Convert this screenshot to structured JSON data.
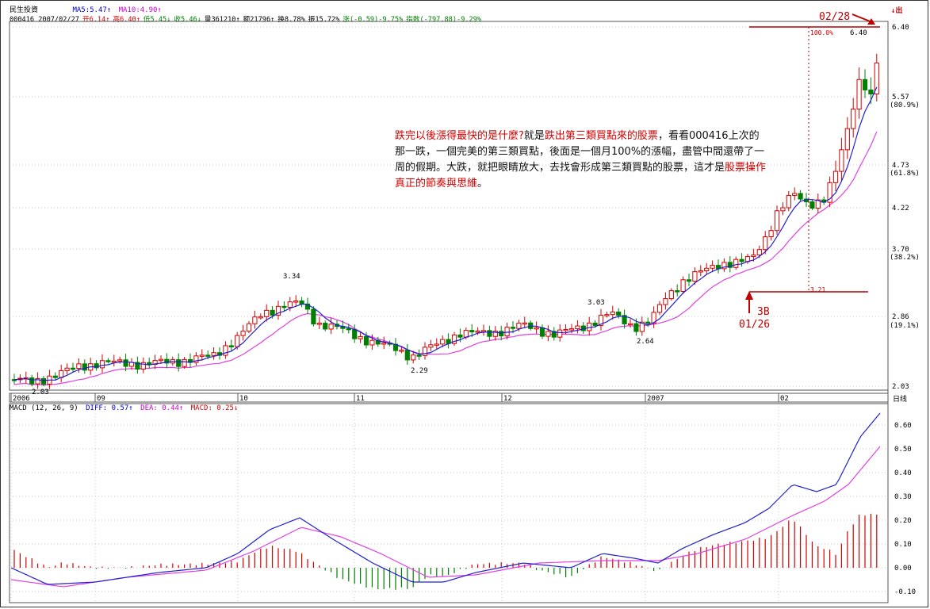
{
  "header": {
    "title": "民生投資",
    "ma5": "MA5:5.47↑",
    "ma10": "MA10:4.90↑",
    "info_line": "000416 2007/02/27",
    "open": "开6.14↑",
    "high": "高6.40↑",
    "low": "低5.45↓",
    "close": "收5.46↓",
    "volume": "量361210↑",
    "amount": "额21796↑",
    "turnover": "换8.78%",
    "amplitude": "振15.72%",
    "change": "涨(-0.59)-9.75%",
    "index": "指数(-797.88)-9.29%"
  },
  "toolbar": {
    "icons": [
      "sort-down-icon",
      "up-icon"
    ],
    "label": "↓出"
  },
  "price_axis": {
    "ticks": [
      "6.40",
      "5.57",
      "4.73",
      "4.22",
      "3.70",
      "2.86",
      "2.03"
    ],
    "pct": [
      "(80.9%)",
      "(61.8%)",
      "(38.2%)",
      "(19.1%)"
    ]
  },
  "date_axis": [
    "2006",
    "09",
    "10",
    "11",
    "12",
    "2007",
    "02"
  ],
  "price_labels": [
    "3.34",
    "2.03",
    "2.29",
    "3.03",
    "2.64",
    "6.40",
    "100.0%",
    "3.21"
  ],
  "annotations": {
    "top_date": "02/28",
    "bottom_label": "3B",
    "bottom_date": "01/26"
  },
  "note": {
    "p1": "跌完以後漲得最快的是什麼?",
    "p2": "就是",
    "p3": "跌出第三類買點來的股票",
    "p4": "，看看000416上次的那一跌，一個完美的第三類買點，後面是一個月100%的漲幅，盡管中間還帶了一周的假期。大跌，就把眼睛放大，去找會形成第三類買點的股票，這才是",
    "p5": "股票操作真正的節奏與思維",
    "p6": "。"
  },
  "macd": {
    "label": "MACD (12, 26, 9)",
    "diff": "DIFF: 0.57↑",
    "dea": "DEA: 0.44↑",
    "macd": "MACD: 0.25↓",
    "ticks": [
      "0.60",
      "0.50",
      "0.40",
      "0.30",
      "0.20",
      "0.10",
      "0.00",
      "-0.10"
    ],
    "period": "日线"
  },
  "colors": {
    "up": "#d40000",
    "down": "#008000",
    "ma5": "#2020d0",
    "ma10": "#e040e0",
    "grid": "#c8c8c8"
  }
}
